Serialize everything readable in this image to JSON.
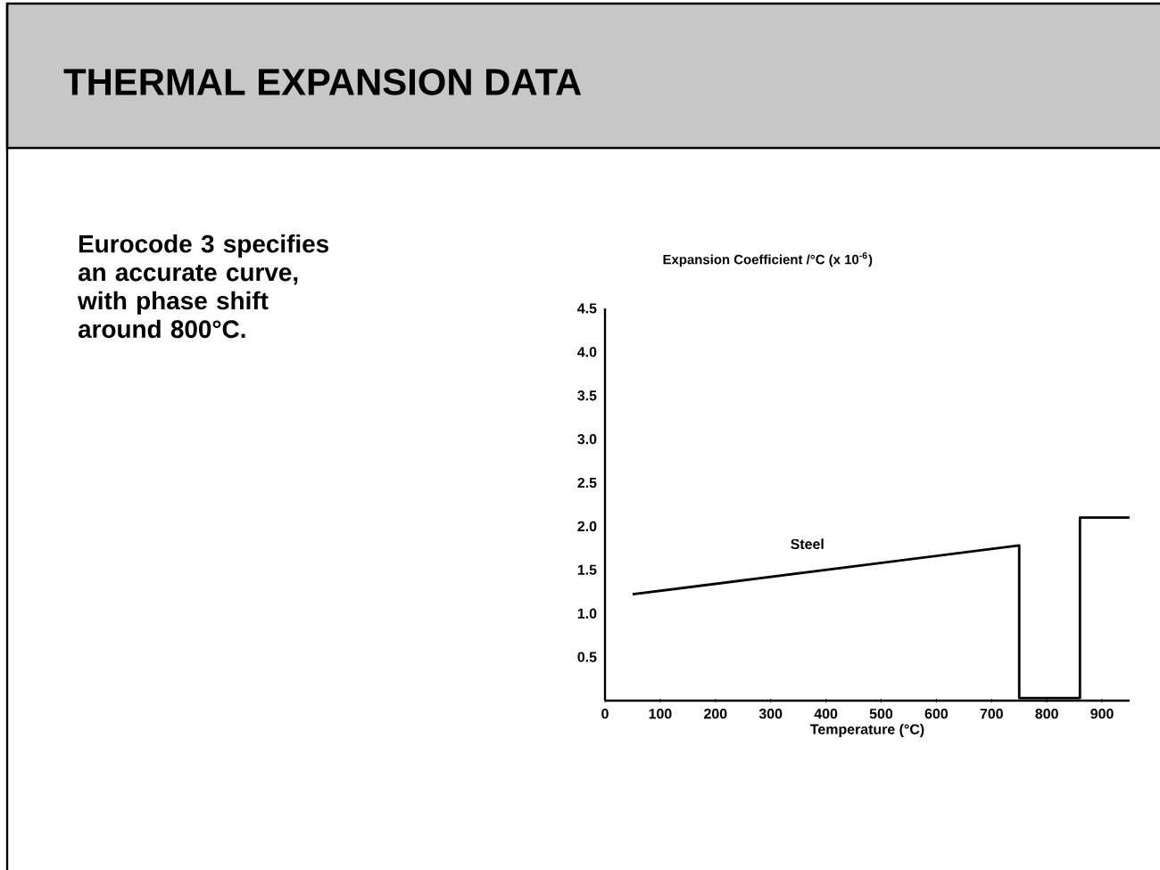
{
  "chart_data": {
    "type": "line",
    "title": "THERMAL EXPANSION DATA",
    "annotations": [
      "Eurocode 3 specifies an accurate curve, with phase shift around 800°C."
    ],
    "ylabel": "Expansion Coefficient  /°C (x 10$^{-6}$)",
    "xlabel": "Temperature (°C)",
    "series": [
      {
        "name": "Steel",
        "color": "#000000",
        "x": [
          50,
          750,
          750,
          860,
          860,
          950
        ],
        "values": [
          1.22,
          1.78,
          0.03,
          0.03,
          2.1,
          2.1
        ]
      }
    ],
    "xlim": [
      0,
      950
    ],
    "xticks": [
      0,
      100,
      200,
      300,
      400,
      500,
      600,
      700,
      800,
      900
    ],
    "ylim": [
      0,
      4.5
    ],
    "yticks": [
      0.5,
      {
        "value": 1,
        "label": "1.0"
      },
      1.5,
      {
        "value": 2,
        "label": "2.0"
      },
      2.5,
      {
        "value": 3,
        "label": "3.0"
      },
      3.5,
      {
        "value": 4,
        "label": "4.0"
      },
      4.5
    ],
    "grid": false,
    "legend": false,
    "marker": "none",
    "line_style": "solid"
  }
}
